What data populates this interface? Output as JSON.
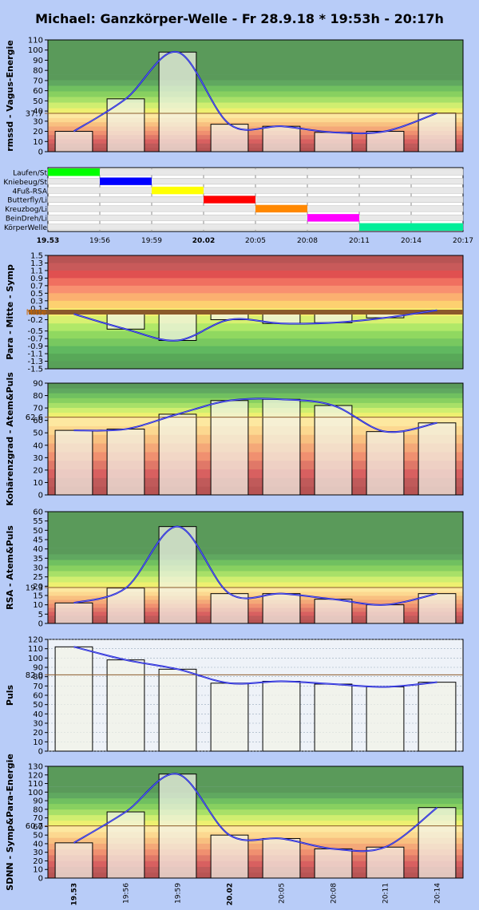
{
  "title": "Michael: Ganzkörper-Welle - Fr 28.9.18 * 19:53h - 20:17h",
  "time_axis": [
    "19.53",
    "19:56",
    "19:59",
    "20.02",
    "20:05",
    "20:08",
    "20:11",
    "20:14",
    "20:17"
  ],
  "bold_time_labels": [
    "19.53",
    "20.02"
  ],
  "bottom_time_axis": [
    "19.53",
    "19:56",
    "19:59",
    "20.02",
    "20:05",
    "20:08",
    "20:11",
    "20:14"
  ],
  "colors": {
    "background": "#b8ccf8",
    "bar_fill": "#f2f2e8",
    "curve": "#0000cc",
    "mid_line": "#996633"
  },
  "chart_data": [
    {
      "id": "rmssd",
      "type": "bar",
      "ylabel": "rmssd - Vagus-Energie",
      "ylim": [
        0,
        110
      ],
      "yticks": [
        0,
        10,
        20,
        30,
        40,
        50,
        60,
        70,
        80,
        90,
        100,
        110
      ],
      "reference": {
        "value": 37.7,
        "label": "37.7"
      },
      "categories": [
        "19.53",
        "19:56",
        "19:59",
        "20.02",
        "20:05",
        "20:08",
        "20:11",
        "20:14"
      ],
      "values": [
        20,
        52,
        98,
        27,
        25,
        19,
        20,
        38
      ],
      "zones": "green-top"
    },
    {
      "id": "uebungen",
      "type": "table",
      "ylabel": "",
      "exercises": [
        {
          "label": "Laufen/St",
          "start": 0,
          "end": 1,
          "color": "#00ff00"
        },
        {
          "label": "Kniebeug/St",
          "start": 1,
          "end": 2,
          "color": "#0000ff"
        },
        {
          "label": "4Fuß-RSA",
          "start": 2,
          "end": 3,
          "color": "#ffff00"
        },
        {
          "label": "Butterfly/Li",
          "start": 3,
          "end": 4,
          "color": "#ff0000"
        },
        {
          "label": "Kreuzbog/Li",
          "start": 4,
          "end": 5,
          "color": "#ff8800"
        },
        {
          "label": "BeinDreh/Li",
          "start": 5,
          "end": 6,
          "color": "#ff00ff"
        },
        {
          "label": "KörperWelle",
          "start": 6,
          "end": 8,
          "color": "#00ee99"
        }
      ]
    },
    {
      "id": "balance",
      "type": "bar",
      "ylabel": "Para - Mitte - Symp",
      "ylim": [
        -1.5,
        1.5
      ],
      "yticks": [
        1.5,
        1.3,
        1.1,
        0.9,
        0.7,
        0.5,
        0.3,
        0.1,
        -0.2,
        -0.5,
        -0.7,
        -0.9,
        -1.1,
        -1.3,
        -1.5
      ],
      "reference": {
        "value": 0,
        "label": "Mitte"
      },
      "categories": [
        "19.53",
        "19:56",
        "19:59",
        "20.02",
        "20:05",
        "20:08",
        "20:11",
        "20:14"
      ],
      "values": [
        -0.05,
        -0.45,
        -0.75,
        -0.2,
        -0.3,
        -0.28,
        -0.15,
        0.05
      ],
      "zones": "red-top"
    },
    {
      "id": "kohaerenz",
      "type": "bar",
      "ylabel": "Kohärenzgrad - Atem&Puls",
      "ylim": [
        0,
        90
      ],
      "yticks": [
        0,
        10,
        20,
        30,
        40,
        50,
        60,
        70,
        80,
        90
      ],
      "reference": {
        "value": 62.6,
        "label": "62.6"
      },
      "categories": [
        "19.53",
        "19:56",
        "19:59",
        "20.02",
        "20:05",
        "20:08",
        "20:11",
        "20:14"
      ],
      "values": [
        52,
        53,
        65,
        76,
        77,
        72,
        51,
        58
      ],
      "zones": "green-top"
    },
    {
      "id": "rsa",
      "type": "bar",
      "ylabel": "RSA - Atem&Puls",
      "ylim": [
        0,
        60
      ],
      "yticks": [
        0,
        5,
        10,
        15,
        20,
        25,
        30,
        35,
        40,
        45,
        50,
        55,
        60
      ],
      "reference": {
        "value": 19.3,
        "label": "19.3"
      },
      "categories": [
        "19.53",
        "19:56",
        "19:59",
        "20.02",
        "20:05",
        "20:08",
        "20:11",
        "20:14"
      ],
      "values": [
        11,
        19,
        52,
        16,
        16,
        13,
        10,
        16
      ],
      "zones": "green-top"
    },
    {
      "id": "puls",
      "type": "bar",
      "ylabel": "Puls",
      "ylim": [
        0,
        120
      ],
      "yticks": [
        0,
        10,
        20,
        30,
        40,
        50,
        60,
        70,
        80,
        90,
        100,
        110,
        120
      ],
      "reference": {
        "value": 82.0,
        "label": "82.0"
      },
      "categories": [
        "19.53",
        "19:56",
        "19:59",
        "20.02",
        "20:05",
        "20:08",
        "20:11",
        "20:14"
      ],
      "values": [
        112,
        98,
        88,
        73,
        75,
        72,
        69,
        74
      ],
      "zones": "plain"
    },
    {
      "id": "sdnn",
      "type": "bar",
      "ylabel": "SDNN - Symp&Para-Energie",
      "ylim": [
        0,
        130
      ],
      "yticks": [
        0,
        10,
        20,
        30,
        40,
        50,
        60,
        70,
        80,
        90,
        100,
        110,
        120,
        130
      ],
      "reference": {
        "value": 60.7,
        "label": "60.7"
      },
      "categories": [
        "19.53",
        "19:56",
        "19:59",
        "20.02",
        "20:05",
        "20:08",
        "20:11",
        "20:14"
      ],
      "values": [
        41,
        77,
        121,
        50,
        46,
        34,
        36,
        82
      ],
      "zones": "green-top"
    }
  ]
}
